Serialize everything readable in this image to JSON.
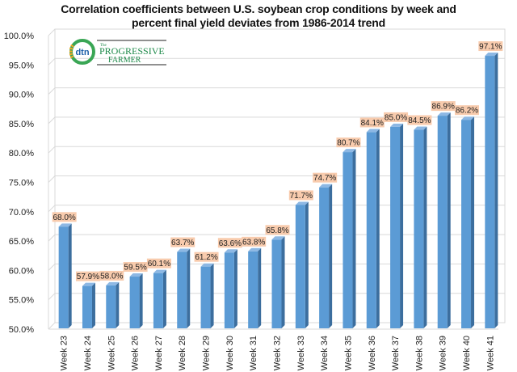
{
  "chart_data": {
    "type": "bar",
    "title": "Correlation coefficients between U.S. soybean crop conditions by week and percent final yield deviates from 1986-2014 trend",
    "title_lines": [
      "Correlation coefficients between U.S. soybean crop conditions by week and",
      "percent final yield deviates from 1986-2014 trend"
    ],
    "xlabel": "",
    "ylabel": "",
    "categories": [
      "Week 23",
      "Week 24",
      "Week 25",
      "Week 26",
      "Week 27",
      "Week 28",
      "Week 29",
      "Week 30",
      "Week 31",
      "Week 32",
      "Week 33",
      "Week 34",
      "Week 35",
      "Week 36",
      "Week 37",
      "Week 38",
      "Week 39",
      "Week 40",
      "Week 41"
    ],
    "values": [
      68.0,
      57.9,
      58.0,
      59.5,
      60.1,
      63.7,
      61.2,
      63.6,
      63.8,
      65.8,
      71.7,
      74.7,
      80.7,
      84.1,
      85.0,
      84.5,
      86.9,
      86.2,
      97.1
    ],
    "data_labels": [
      "68.0%",
      "57.9%",
      "58.0%",
      "59.5%",
      "60.1%",
      "63.7%",
      "61.2%",
      "63.6%",
      "63.8%",
      "65.8%",
      "71.7%",
      "74.7%",
      "80.7%",
      "84.1%",
      "85.0%",
      "84.5%",
      "86.9%",
      "86.2%",
      "97.1%"
    ],
    "ylim": [
      50,
      100
    ],
    "yticks": [
      50,
      55,
      60,
      65,
      70,
      75,
      80,
      85,
      90,
      95,
      100
    ],
    "ytick_labels": [
      "50.0%",
      "55.0%",
      "60.0%",
      "65.0%",
      "70.0%",
      "75.0%",
      "80.0%",
      "85.0%",
      "90.0%",
      "95.0%",
      "100.0%"
    ],
    "grid": true,
    "legend": "none",
    "style": "3d-column",
    "colors": {
      "bar_front": "#5b9bd5",
      "bar_side": "#3c6e9e",
      "bar_top": "#8db8e4",
      "label_bg": "#f8cbad",
      "grid": "#d9d9d9"
    }
  },
  "logo": {
    "mark_text": "dtn",
    "brand_line1": "PROGRESSIVE",
    "brand_line2": "FARMER",
    "brand_small": "The"
  }
}
